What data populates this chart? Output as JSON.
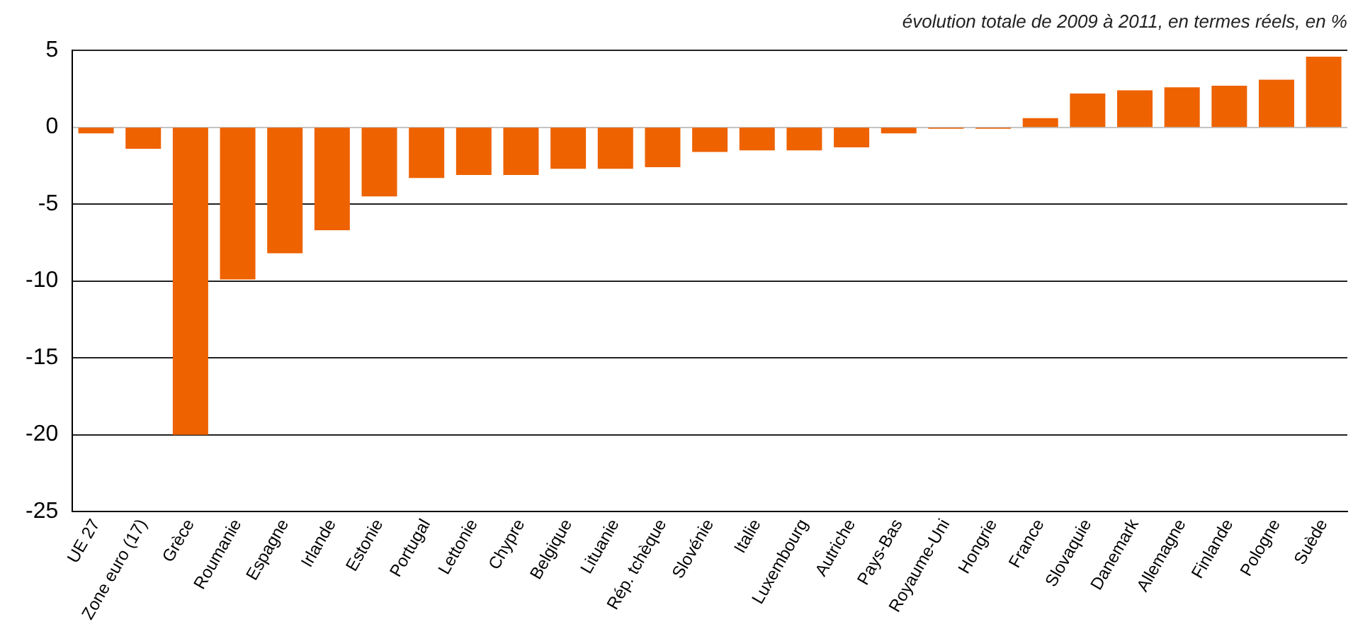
{
  "chart_data": {
    "type": "bar",
    "title": "évolution totale de 2009 à 2011, en termes réels, en %",
    "categories": [
      "UE 27",
      "Zone euro (17)",
      "Grèce",
      "Roumanie",
      "Espagne",
      "Irlande",
      "Estonie",
      "Portugal",
      "Lettonie",
      "Chypre",
      "Belgique",
      "Lituanie",
      "Rép. tchèque",
      "Slovénie",
      "Italie",
      "Luxembourg",
      "Autriche",
      "Pays-Bas",
      "Royaume-Uni",
      "Hongrie",
      "France",
      "Slovaquie",
      "Danemark",
      "Allemagne",
      "Finlande",
      "Pologne",
      "Suède"
    ],
    "values": [
      -0.4,
      -1.4,
      -20.0,
      -9.9,
      -8.2,
      -6.7,
      -4.5,
      -3.3,
      -3.1,
      -3.1,
      -2.7,
      -2.7,
      -2.6,
      -1.6,
      -1.5,
      -1.5,
      -1.3,
      -0.4,
      -0.1,
      -0.1,
      0.6,
      2.2,
      2.4,
      2.6,
      2.7,
      3.1,
      4.6
    ],
    "color": "#ee6200",
    "ylim": [
      -25,
      5
    ],
    "yticks": [
      -25,
      -20,
      -15,
      -10,
      -5,
      0,
      5
    ],
    "grid": "y"
  }
}
